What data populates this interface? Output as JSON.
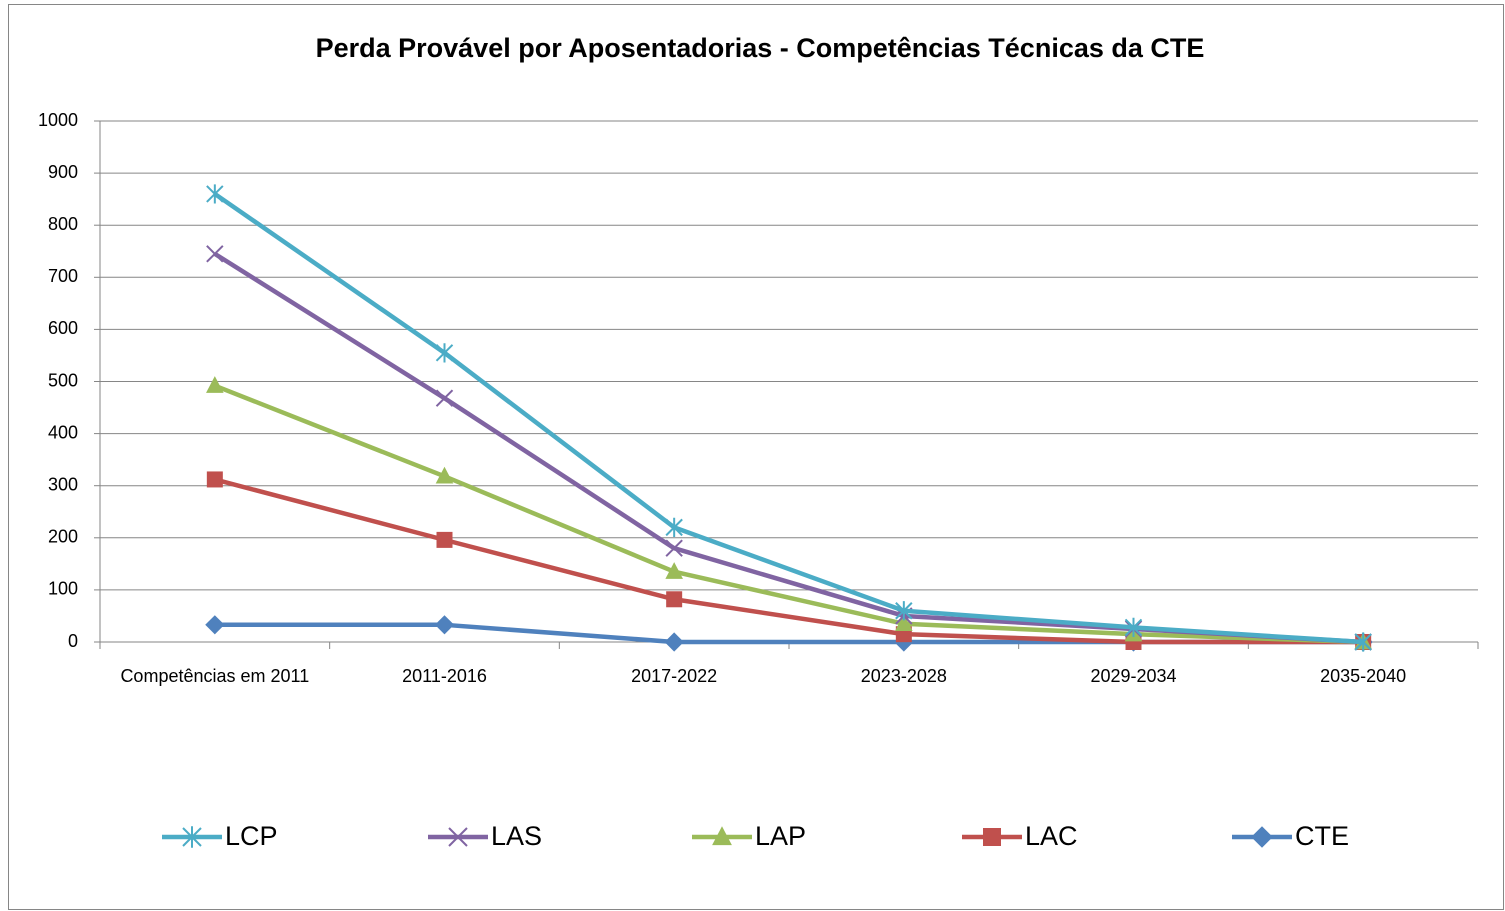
{
  "chart_data": {
    "type": "line",
    "title": "Perda Provável por Aposentadorias - Competências Técnicas da CTE",
    "categories": [
      "Competências em 2011",
      "2011-2016",
      "2017-2022",
      "2023-2028",
      "2029-2034",
      "2035-2040"
    ],
    "series": [
      {
        "name": "LCP",
        "color": "#4bacc6",
        "marker": "star",
        "values": [
          860,
          555,
          220,
          60,
          28,
          0
        ]
      },
      {
        "name": "LAS",
        "color": "#8064a2",
        "marker": "x",
        "values": [
          745,
          468,
          180,
          50,
          25,
          0
        ]
      },
      {
        "name": "LAP",
        "color": "#9bbb59",
        "marker": "triangle",
        "values": [
          492,
          318,
          135,
          35,
          15,
          0
        ]
      },
      {
        "name": "LAC",
        "color": "#c0504d",
        "marker": "square",
        "values": [
          312,
          196,
          82,
          15,
          0,
          0
        ]
      },
      {
        "name": "CTE",
        "color": "#4f81bd",
        "marker": "diamond",
        "values": [
          33,
          33,
          0,
          0,
          0,
          0
        ]
      }
    ],
    "ylim": [
      0,
      1000
    ],
    "yticks": [
      0,
      100,
      200,
      300,
      400,
      500,
      600,
      700,
      800,
      900,
      1000
    ],
    "grid": true,
    "legend": "bottom"
  }
}
